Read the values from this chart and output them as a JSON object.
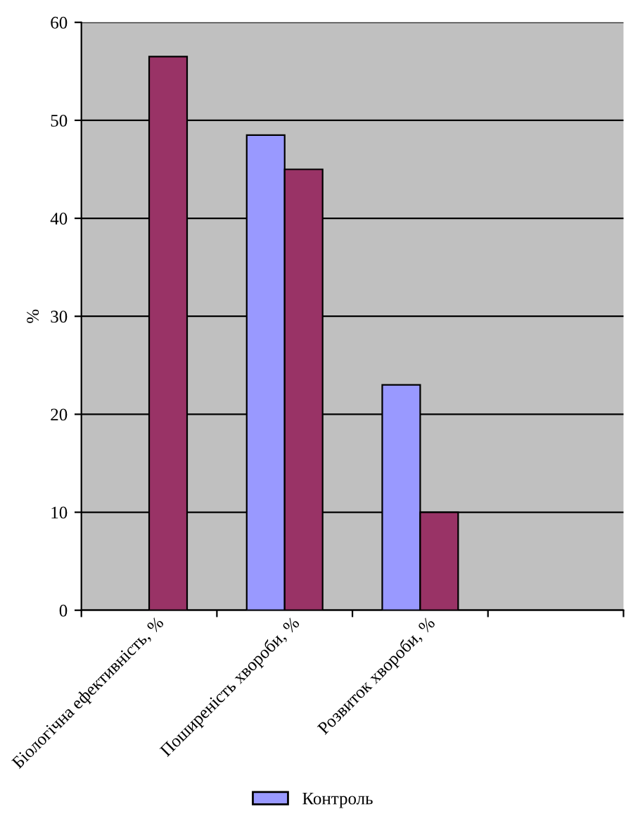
{
  "chart_data": {
    "type": "bar",
    "ylabel": "%",
    "categories": [
      "Біологічна ефективність, %",
      "Поширеність хвороби, %",
      "Розвиток хвороби, %",
      null
    ],
    "series": [
      {
        "name": "Контроль",
        "color": "#9999ff",
        "values": [
          null,
          48.5,
          23,
          null
        ]
      },
      {
        "color": "#993366",
        "values": [
          56.5,
          45,
          10,
          null
        ]
      }
    ],
    "ylim": [
      0,
      60
    ],
    "yticks": [
      0,
      10,
      20,
      30,
      40,
      50,
      60
    ],
    "grid": "y",
    "legend": "bottom"
  }
}
